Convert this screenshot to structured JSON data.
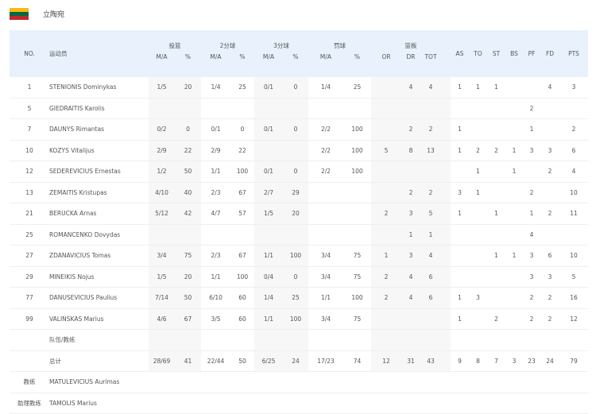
{
  "team": {
    "name": "立陶宛",
    "flag_colors": [
      "#fdb913",
      "#006a44",
      "#c1272d"
    ]
  },
  "colors": {
    "header_bg": "#e8f1fc",
    "shaded_col": "#f7f7f7"
  },
  "header": {
    "no": "NO.",
    "player": "运动员",
    "groups": {
      "fg": "投篮",
      "p2": "2分球",
      "p3": "3分球",
      "ft": "罚球",
      "reb": "篮板"
    },
    "ma": "M/A",
    "pct": "%",
    "or": "OR",
    "dr": "DR",
    "tot": "TOT",
    "as": "AS",
    "to": "TO",
    "st": "ST",
    "bs": "BS",
    "pf": "PF",
    "fd": "FD",
    "pts": "PTS"
  },
  "players": [
    [
      "1",
      "STENIONIS Dominykas",
      "1/5",
      "20",
      "1/4",
      "25",
      "0/1",
      "0",
      "1/4",
      "25",
      "",
      "4",
      "4",
      "1",
      "1",
      "1",
      "",
      "",
      "4",
      "3"
    ],
    [
      "5",
      "GIEDRAITIS Karolis",
      "",
      "",
      "",
      "",
      "",
      "",
      "",
      "",
      "",
      "",
      "",
      "",
      "",
      "",
      "",
      "2",
      "",
      ""
    ],
    [
      "7",
      "DAUNYS Rimantas",
      "0/2",
      "0",
      "0/1",
      "0",
      "0/1",
      "0",
      "2/2",
      "100",
      "",
      "2",
      "2",
      "1",
      "",
      "",
      "",
      "1",
      "",
      "2"
    ],
    [
      "10",
      "KOZYS Vitalijus",
      "2/9",
      "22",
      "2/9",
      "22",
      "",
      "",
      "2/2",
      "100",
      "5",
      "8",
      "13",
      "1",
      "2",
      "2",
      "1",
      "3",
      "3",
      "6"
    ],
    [
      "12",
      "SEDEREVICIUS Ernestas",
      "1/2",
      "50",
      "1/1",
      "100",
      "0/1",
      "0",
      "2/2",
      "100",
      "",
      "",
      "",
      "",
      "1",
      "",
      "1",
      "",
      "2",
      "4"
    ],
    [
      "13",
      "ZEMAITIS Kristupas",
      "4/10",
      "40",
      "2/3",
      "67",
      "2/7",
      "29",
      "",
      "",
      "",
      "2",
      "2",
      "3",
      "1",
      "",
      "",
      "2",
      "",
      "10"
    ],
    [
      "21",
      "BERUCKA Arnas",
      "5/12",
      "42",
      "4/7",
      "57",
      "1/5",
      "20",
      "",
      "",
      "2",
      "3",
      "5",
      "1",
      "",
      "1",
      "",
      "1",
      "2",
      "11"
    ],
    [
      "25",
      "ROMANCENKO Dovydas",
      "",
      "",
      "",
      "",
      "",
      "",
      "",
      "",
      "",
      "1",
      "1",
      "",
      "",
      "",
      "",
      "4",
      "",
      ""
    ],
    [
      "27",
      "ZDANAVICIUS Tomas",
      "3/4",
      "75",
      "2/3",
      "67",
      "1/1",
      "100",
      "3/4",
      "75",
      "1",
      "3",
      "4",
      "",
      "",
      "1",
      "1",
      "3",
      "6",
      "10"
    ],
    [
      "29",
      "MINEIKIS Nojus",
      "1/5",
      "20",
      "1/1",
      "100",
      "0/4",
      "0",
      "3/4",
      "75",
      "2",
      "4",
      "6",
      "",
      "",
      "",
      "",
      "3",
      "3",
      "5"
    ],
    [
      "77",
      "DANUSEVICIUS Paulius",
      "7/14",
      "50",
      "6/10",
      "60",
      "1/4",
      "25",
      "1/1",
      "100",
      "2",
      "4",
      "6",
      "1",
      "3",
      "",
      "",
      "2",
      "2",
      "16"
    ],
    [
      "99",
      "VALINSKAS Marius",
      "4/6",
      "67",
      "3/5",
      "60",
      "1/1",
      "100",
      "3/4",
      "75",
      "",
      "",
      "",
      "1",
      "",
      "2",
      "",
      "2",
      "2",
      "12"
    ]
  ],
  "team_row": {
    "label": "队伍/教练"
  },
  "totals": [
    "",
    "总计",
    "28/69",
    "41",
    "22/44",
    "50",
    "6/25",
    "24",
    "17/23",
    "74",
    "12",
    "31",
    "43",
    "9",
    "8",
    "7",
    "3",
    "23",
    "24",
    "79"
  ],
  "coaches": [
    {
      "role": "教练",
      "name": "MATULEVICIUS Aurimas"
    },
    {
      "role": "助理教练",
      "name": "TAMOLIS Marius"
    }
  ]
}
